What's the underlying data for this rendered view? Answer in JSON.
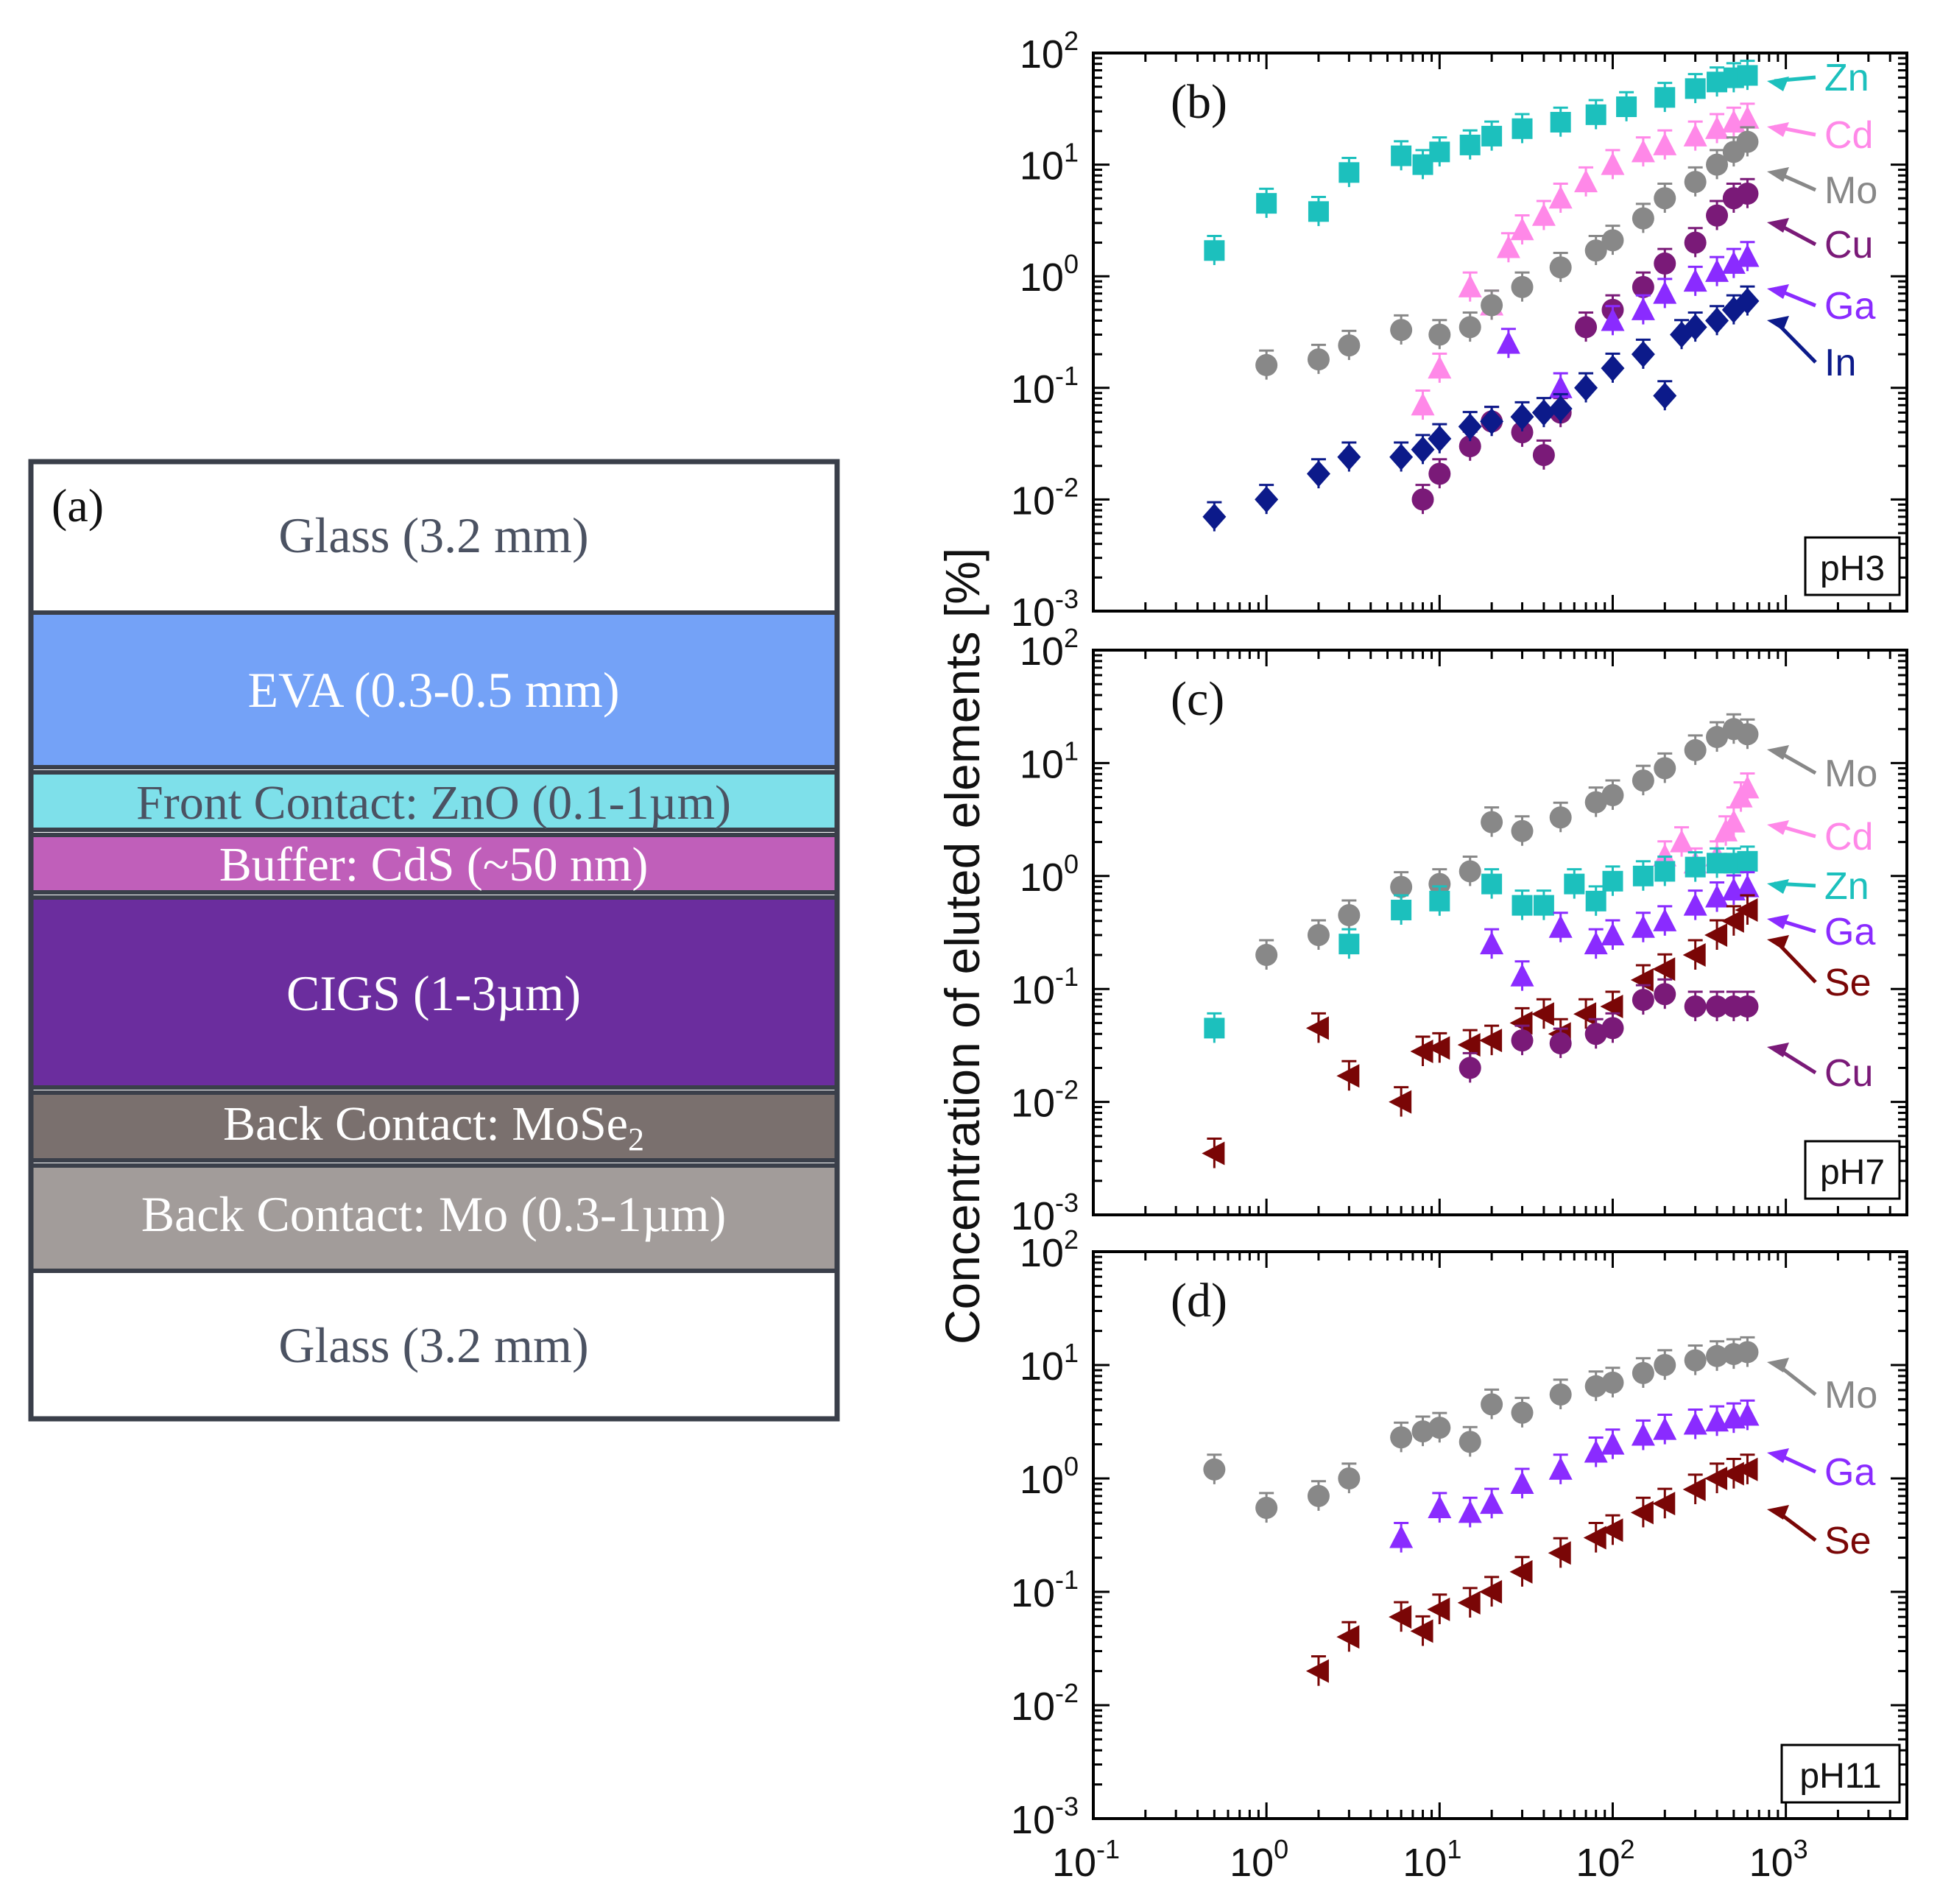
{
  "panel_a": {
    "label": "(a)",
    "layers": [
      {
        "label": "Glass (3.2 mm)",
        "fill": "#ffffff",
        "text_color": "#4b5262"
      },
      {
        "label": "EVA (0.3-0.5 mm)",
        "fill": "#74a2f7",
        "text_color": "#ffffff"
      },
      {
        "label": "Front Contact: ZnO (0.1-1µm)",
        "fill": "#7ee0ea",
        "text_color": "#4b5262"
      },
      {
        "label": "Buffer: CdS (~50 nm)",
        "fill": "#c05fba",
        "text_color": "#ffffff"
      },
      {
        "label": "CIGS (1-3µm)",
        "fill": "#6b2d9e",
        "text_color": "#ffffff"
      },
      {
        "label": "Back Contact: MoSe",
        "subscript": "2",
        "fill": "#7a706e",
        "text_color": "#ffffff"
      },
      {
        "label": "Back Contact: Mo (0.3-1µm)",
        "fill": "#a29c9a",
        "text_color": "#ffffff"
      },
      {
        "label": "Glass (3.2 mm)",
        "fill": "#ffffff",
        "text_color": "#4b5262"
      }
    ]
  },
  "ylabel": "Concentration of eluted elements [%]",
  "tick_labels": {
    "x": [
      {
        "base": "10",
        "exp": "-1"
      },
      {
        "base": "10",
        "exp": "0"
      },
      {
        "base": "10",
        "exp": "1"
      },
      {
        "base": "10",
        "exp": "2"
      },
      {
        "base": "10",
        "exp": "3"
      }
    ],
    "y": [
      {
        "base": "10",
        "exp": "-3"
      },
      {
        "base": "10",
        "exp": "-2"
      },
      {
        "base": "10",
        "exp": "-1"
      },
      {
        "base": "10",
        "exp": "0"
      },
      {
        "base": "10",
        "exp": "1"
      },
      {
        "base": "10",
        "exp": "2"
      }
    ]
  },
  "colors": {
    "Zn": "#1cc0bd",
    "Cd": "#ff88e8",
    "Mo": "#888888",
    "Cu": "#7a1a78",
    "Ga": "#8a2bff",
    "In": "#0c1a8a",
    "Se": "#7a0606"
  },
  "chart_data": [
    {
      "type": "scatter",
      "panel": "(b)",
      "ph_label": "pH3",
      "x_scale": "log",
      "y_scale": "log",
      "xlim": [
        0.1,
        5000
      ],
      "ylim": [
        0.001,
        100
      ],
      "series": [
        {
          "name": "Zn",
          "marker": "square",
          "x": [
            0.5,
            1,
            2,
            3,
            6,
            8,
            10,
            15,
            20,
            30,
            50,
            80,
            120,
            200,
            300,
            400,
            500,
            600
          ],
          "y": [
            1.7,
            4.5,
            3.8,
            8.5,
            12,
            10,
            13,
            15,
            18,
            21,
            24,
            28,
            33,
            40,
            48,
            55,
            60,
            63
          ]
        },
        {
          "name": "Cd",
          "marker": "triangle-up",
          "x": [
            8,
            10,
            15,
            20,
            25,
            30,
            40,
            50,
            70,
            100,
            150,
            200,
            300,
            400,
            500,
            600
          ],
          "y": [
            0.07,
            0.15,
            0.8,
            0.55,
            1.8,
            2.6,
            3.5,
            5,
            7,
            10,
            13,
            15,
            18,
            21,
            24,
            26
          ]
        },
        {
          "name": "Mo",
          "marker": "circle",
          "x": [
            1,
            2,
            3,
            6,
            10,
            15,
            20,
            30,
            50,
            80,
            100,
            150,
            200,
            300,
            400,
            500,
            600
          ],
          "y": [
            0.16,
            0.18,
            0.24,
            0.33,
            0.3,
            0.35,
            0.55,
            0.8,
            1.2,
            1.7,
            2.1,
            3.3,
            5,
            7,
            10,
            13,
            16
          ]
        },
        {
          "name": "Cu",
          "marker": "circle",
          "x": [
            8,
            10,
            15,
            20,
            30,
            40,
            50,
            70,
            100,
            150,
            200,
            300,
            400,
            500,
            600
          ],
          "y": [
            0.01,
            0.017,
            0.03,
            0.05,
            0.04,
            0.025,
            0.06,
            0.35,
            0.5,
            0.8,
            1.3,
            2.0,
            3.5,
            5,
            5.5
          ]
        },
        {
          "name": "Ga",
          "marker": "triangle-up",
          "x": [
            25,
            50,
            100,
            150,
            200,
            300,
            400,
            500,
            600
          ],
          "y": [
            0.25,
            0.1,
            0.4,
            0.5,
            0.7,
            0.9,
            1.1,
            1.3,
            1.5
          ]
        },
        {
          "name": "In",
          "marker": "diamond",
          "x": [
            0.5,
            1,
            2,
            3,
            6,
            8,
            10,
            15,
            20,
            30,
            40,
            50,
            70,
            100,
            150,
            200,
            250,
            300,
            400,
            500,
            600
          ],
          "y": [
            0.007,
            0.01,
            0.017,
            0.024,
            0.024,
            0.028,
            0.035,
            0.045,
            0.05,
            0.055,
            0.06,
            0.065,
            0.1,
            0.15,
            0.2,
            0.085,
            0.3,
            0.35,
            0.4,
            0.5,
            0.6
          ]
        }
      ],
      "annotations": [
        "Zn",
        "Cd",
        "Mo",
        "Cu",
        "Ga",
        "In"
      ]
    },
    {
      "type": "scatter",
      "panel": "(c)",
      "ph_label": "pH7",
      "x_scale": "log",
      "y_scale": "log",
      "xlim": [
        0.1,
        5000
      ],
      "ylim": [
        0.001,
        100
      ],
      "series": [
        {
          "name": "Mo",
          "marker": "circle",
          "x": [
            1,
            2,
            3,
            6,
            10,
            15,
            20,
            30,
            50,
            80,
            100,
            150,
            200,
            300,
            400,
            500,
            600
          ],
          "y": [
            0.2,
            0.3,
            0.45,
            0.8,
            0.85,
            1.1,
            3,
            2.5,
            3.3,
            4.5,
            5.2,
            7,
            9,
            13,
            17,
            20,
            18
          ]
        },
        {
          "name": "Cd",
          "marker": "triangle-up",
          "x": [
            200,
            250,
            300,
            400,
            450,
            500,
            550,
            600
          ],
          "y": [
            1.5,
            2,
            1.3,
            1.5,
            2.5,
            3,
            5,
            6
          ]
        },
        {
          "name": "Zn",
          "marker": "square",
          "x": [
            0.5,
            3,
            6,
            10,
            20,
            30,
            40,
            60,
            80,
            100,
            150,
            200,
            300,
            400,
            500,
            600
          ],
          "y": [
            0.045,
            0.25,
            0.5,
            0.6,
            0.85,
            0.55,
            0.55,
            0.85,
            0.6,
            0.9,
            1.0,
            1.1,
            1.2,
            1.3,
            1.3,
            1.35
          ]
        },
        {
          "name": "Ga",
          "marker": "triangle-up",
          "x": [
            20,
            30,
            50,
            80,
            100,
            150,
            200,
            300,
            400,
            500,
            600
          ],
          "y": [
            0.25,
            0.13,
            0.35,
            0.25,
            0.3,
            0.35,
            0.4,
            0.55,
            0.65,
            0.75,
            0.8
          ]
        },
        {
          "name": "Se",
          "marker": "triangle-left",
          "x": [
            0.5,
            2,
            3,
            6,
            8,
            10,
            15,
            20,
            30,
            40,
            50,
            70,
            100,
            150,
            200,
            300,
            400,
            500,
            600
          ],
          "y": [
            0.0035,
            0.045,
            0.017,
            0.01,
            0.028,
            0.03,
            0.032,
            0.035,
            0.05,
            0.06,
            0.04,
            0.06,
            0.07,
            0.12,
            0.15,
            0.2,
            0.3,
            0.4,
            0.5
          ]
        },
        {
          "name": "Cu",
          "marker": "circle",
          "x": [
            15,
            30,
            50,
            80,
            100,
            150,
            200,
            300,
            400,
            500,
            600
          ],
          "y": [
            0.02,
            0.035,
            0.033,
            0.04,
            0.045,
            0.08,
            0.09,
            0.07,
            0.07,
            0.07,
            0.07
          ]
        }
      ],
      "annotations": [
        "Mo",
        "Cd",
        "Zn",
        "Ga",
        "Se",
        "Cu"
      ]
    },
    {
      "type": "scatter",
      "panel": "(d)",
      "ph_label": "pH11",
      "x_scale": "log",
      "y_scale": "log",
      "xlim": [
        0.1,
        5000
      ],
      "ylim": [
        0.001,
        100
      ],
      "series": [
        {
          "name": "Mo",
          "marker": "circle",
          "x": [
            0.5,
            1,
            2,
            3,
            6,
            8,
            10,
            15,
            20,
            30,
            50,
            80,
            100,
            150,
            200,
            300,
            400,
            500,
            600
          ],
          "y": [
            1.2,
            0.55,
            0.7,
            1.0,
            2.3,
            2.6,
            2.8,
            2.1,
            4.5,
            3.8,
            5.5,
            6.5,
            7,
            8.5,
            10,
            11,
            12,
            12.5,
            13
          ]
        },
        {
          "name": "Ga",
          "marker": "triangle-up",
          "x": [
            6,
            10,
            15,
            20,
            30,
            50,
            80,
            100,
            150,
            200,
            300,
            400,
            500,
            600
          ],
          "y": [
            0.3,
            0.55,
            0.5,
            0.6,
            0.9,
            1.2,
            1.7,
            2.0,
            2.4,
            2.7,
            3.0,
            3.2,
            3.4,
            3.6
          ]
        },
        {
          "name": "Se",
          "marker": "triangle-left",
          "x": [
            2,
            3,
            6,
            8,
            10,
            15,
            20,
            30,
            50,
            80,
            100,
            150,
            200,
            300,
            400,
            500,
            600
          ],
          "y": [
            0.02,
            0.04,
            0.06,
            0.045,
            0.07,
            0.08,
            0.1,
            0.15,
            0.22,
            0.3,
            0.35,
            0.5,
            0.6,
            0.8,
            1.0,
            1.1,
            1.2
          ]
        }
      ],
      "annotations": [
        "Mo",
        "Ga",
        "Se"
      ]
    }
  ]
}
